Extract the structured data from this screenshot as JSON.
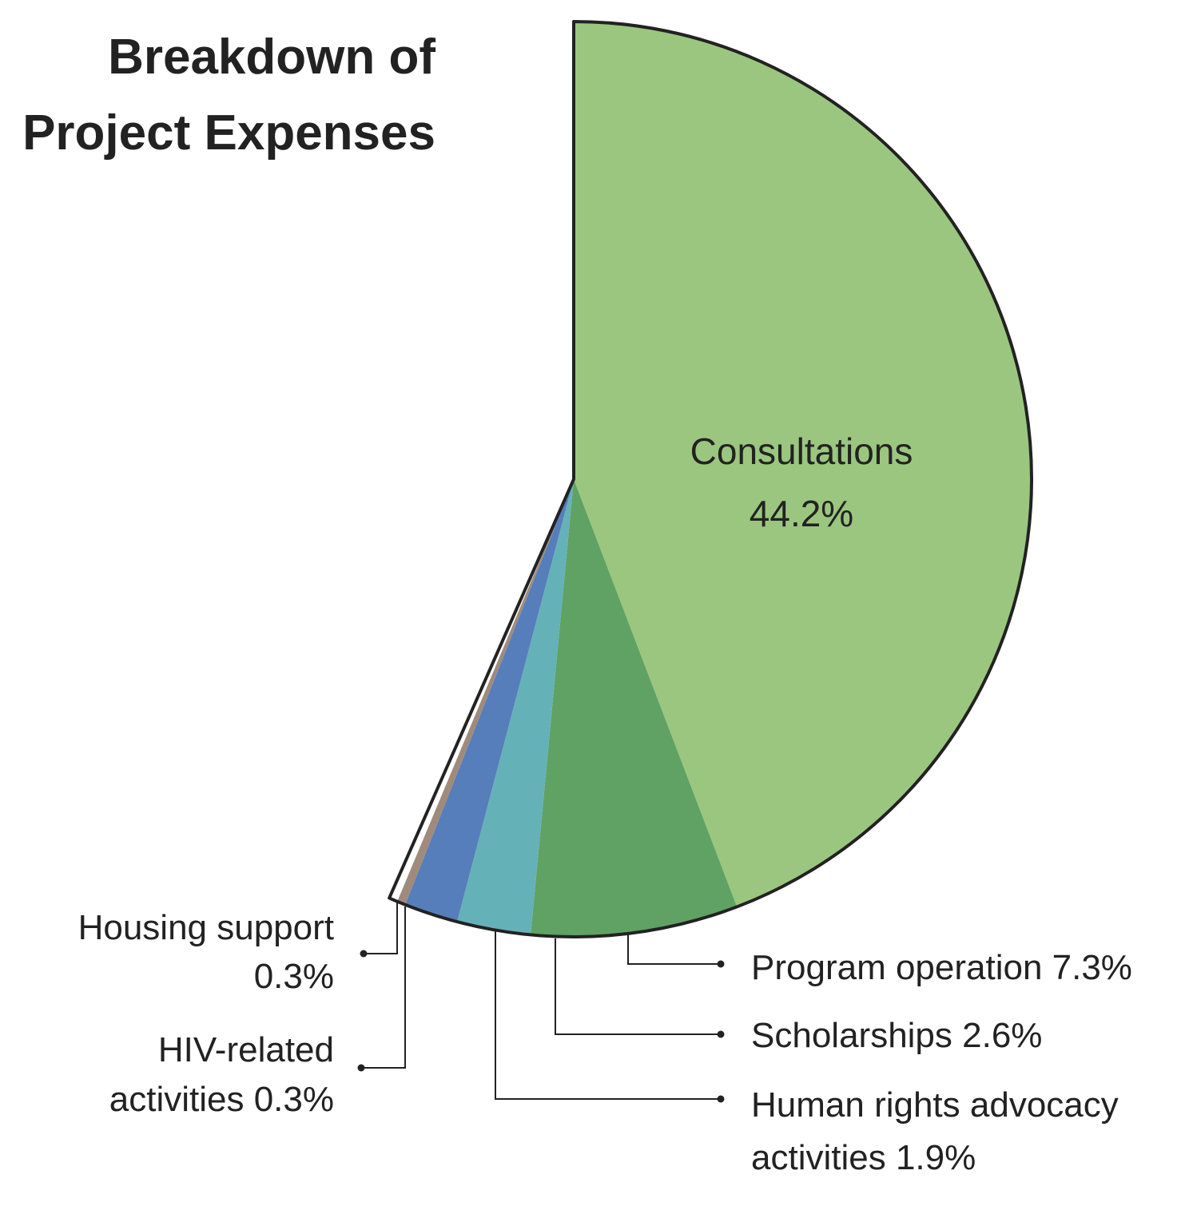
{
  "chart_data": {
    "type": "pie",
    "title_lines": [
      "Breakdown of",
      "Project Expenses"
    ],
    "start": "12 o'clock, clockwise",
    "slices": [
      {
        "label": "Consultations",
        "value_label": "44.2%",
        "value": 44.2,
        "color": "#9bc67f"
      },
      {
        "label": "Program operation",
        "value_label": "7.3%",
        "value": 7.3,
        "color": "#5fa264"
      },
      {
        "label": "Scholarships",
        "value_label": "2.6%",
        "value": 2.6,
        "color": "#65b1b8"
      },
      {
        "label": "Human rights advocacy",
        "value_label": "1.9%",
        "value": 1.9,
        "color": "#567eba"
      },
      {
        "label": "HIV-related",
        "value_label": "0.3%",
        "value": 0.3,
        "color": "#a08b7b"
      },
      {
        "label": "Housing support",
        "value_label": "0.3%",
        "value": 0.3,
        "color": "#ffffff"
      }
    ],
    "remaining_portion": "not drawn",
    "outline_color": "#222222"
  },
  "labels": {
    "consultations_name": "Consultations",
    "consultations_value": "44.2%",
    "program_operation": "Program operation 7.3%",
    "scholarships": "Scholarships 2.6%",
    "human_rights_line1": "Human rights advocacy",
    "human_rights_line2": "activities 1.9%",
    "housing_line1": "Housing support",
    "housing_line2": "0.3%",
    "hiv_line1": "HIV-related",
    "hiv_line2": "activities 0.3%"
  }
}
